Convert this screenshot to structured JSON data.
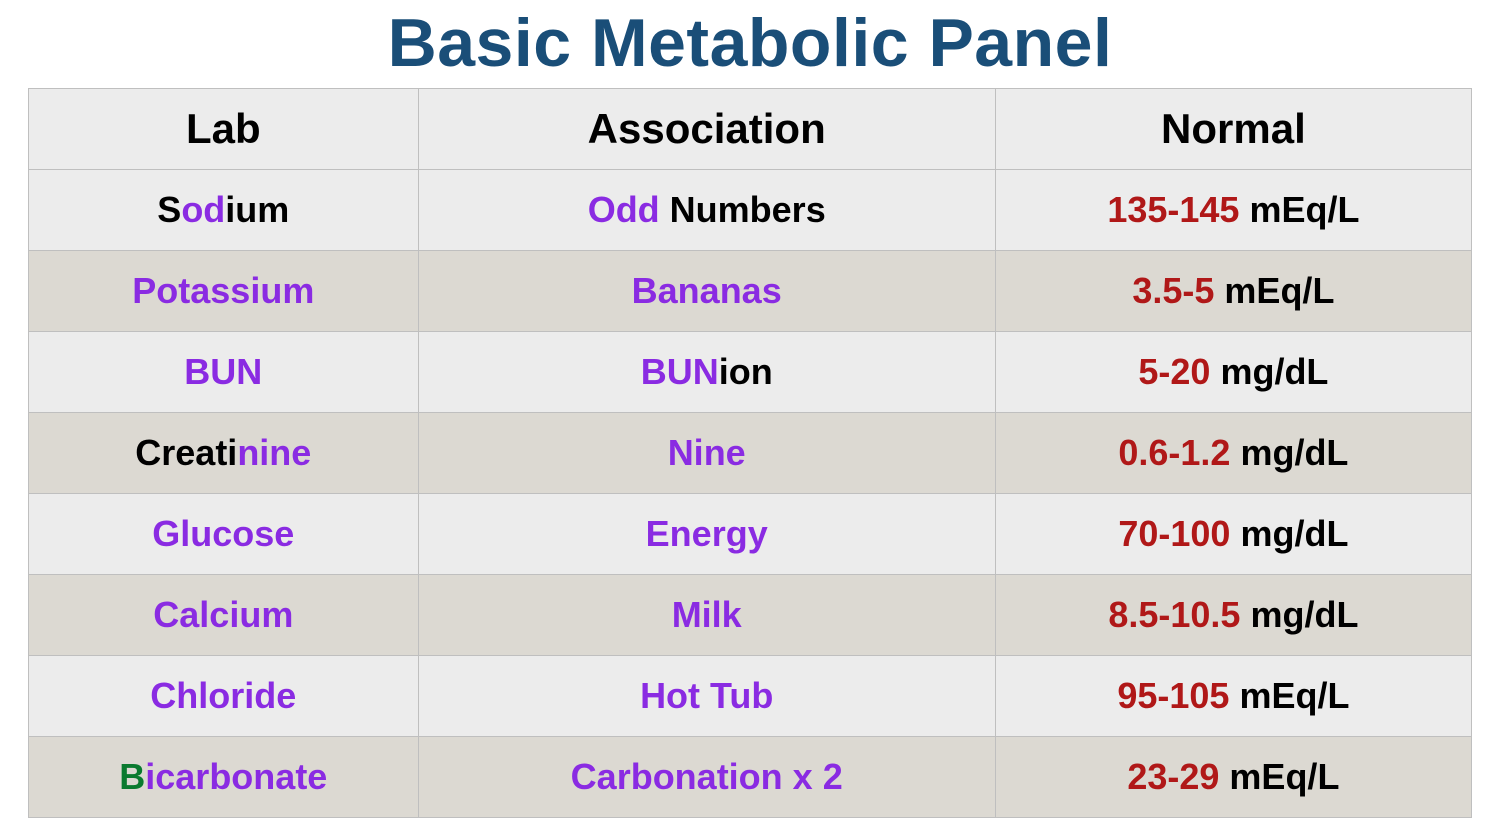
{
  "title": {
    "text": "Basic Metabolic Panel",
    "color": "#1a4e78",
    "fontsize": 68
  },
  "table": {
    "type": "table",
    "border_color": "#bfbfbf",
    "header_bg": "#ececec",
    "row_bg_odd": "#ececec",
    "row_bg_even": "#dcd9d2",
    "header_fontsize": 42,
    "cell_fontsize": 36,
    "columns": [
      {
        "key": "lab",
        "label": "Lab",
        "width_pct": 27
      },
      {
        "key": "association",
        "label": "Association",
        "width_pct": 40
      },
      {
        "key": "normal",
        "label": "Normal",
        "width_pct": 33
      }
    ],
    "colors": {
      "black": "#000000",
      "purple": "#8a2be2",
      "red": "#b01818",
      "green": "#0a7a2f"
    },
    "rows": [
      {
        "lab": [
          {
            "t": "S",
            "c": "black"
          },
          {
            "t": "od",
            "c": "purple"
          },
          {
            "t": "ium",
            "c": "black"
          }
        ],
        "assoc": [
          {
            "t": "Odd",
            "c": "purple"
          },
          {
            "t": " Numbers",
            "c": "black"
          }
        ],
        "normal": [
          {
            "t": "135-145",
            "c": "red"
          },
          {
            "t": " mEq/L",
            "c": "black"
          }
        ]
      },
      {
        "lab": [
          {
            "t": "Potassium",
            "c": "purple"
          }
        ],
        "assoc": [
          {
            "t": "Bananas",
            "c": "purple"
          }
        ],
        "normal": [
          {
            "t": "3.5-5",
            "c": "red"
          },
          {
            "t": " mEq/L",
            "c": "black"
          }
        ]
      },
      {
        "lab": [
          {
            "t": "BUN",
            "c": "purple"
          }
        ],
        "assoc": [
          {
            "t": "BUN",
            "c": "purple"
          },
          {
            "t": "ion",
            "c": "black"
          }
        ],
        "normal": [
          {
            "t": "5-20",
            "c": "red"
          },
          {
            "t": " mg/dL",
            "c": "black"
          }
        ]
      },
      {
        "lab": [
          {
            "t": "Creati",
            "c": "black"
          },
          {
            "t": "nine",
            "c": "purple"
          }
        ],
        "assoc": [
          {
            "t": "Nine",
            "c": "purple"
          }
        ],
        "normal": [
          {
            "t": "0.6-1.2",
            "c": "red"
          },
          {
            "t": " mg/dL",
            "c": "black"
          }
        ]
      },
      {
        "lab": [
          {
            "t": "Glucose",
            "c": "purple"
          }
        ],
        "assoc": [
          {
            "t": "Energy",
            "c": "purple"
          }
        ],
        "normal": [
          {
            "t": "70-100",
            "c": "red"
          },
          {
            "t": " mg/dL",
            "c": "black"
          }
        ]
      },
      {
        "lab": [
          {
            "t": "Calcium",
            "c": "purple"
          }
        ],
        "assoc": [
          {
            "t": "Milk",
            "c": "purple"
          }
        ],
        "normal": [
          {
            "t": "8.5-10.5",
            "c": "red"
          },
          {
            "t": " mg/dL",
            "c": "black"
          }
        ]
      },
      {
        "lab": [
          {
            "t": "Chloride",
            "c": "purple"
          }
        ],
        "assoc": [
          {
            "t": "Hot Tub",
            "c": "purple"
          }
        ],
        "normal": [
          {
            "t": "95-105",
            "c": "red"
          },
          {
            "t": " mEq/L",
            "c": "black"
          }
        ]
      },
      {
        "lab": [
          {
            "t": "B",
            "c": "green"
          },
          {
            "t": "icarbonate",
            "c": "purple"
          }
        ],
        "assoc": [
          {
            "t": "Carbonation x 2",
            "c": "purple"
          }
        ],
        "normal": [
          {
            "t": "23-29",
            "c": "red"
          },
          {
            "t": " mEq/L",
            "c": "black"
          }
        ]
      }
    ]
  }
}
